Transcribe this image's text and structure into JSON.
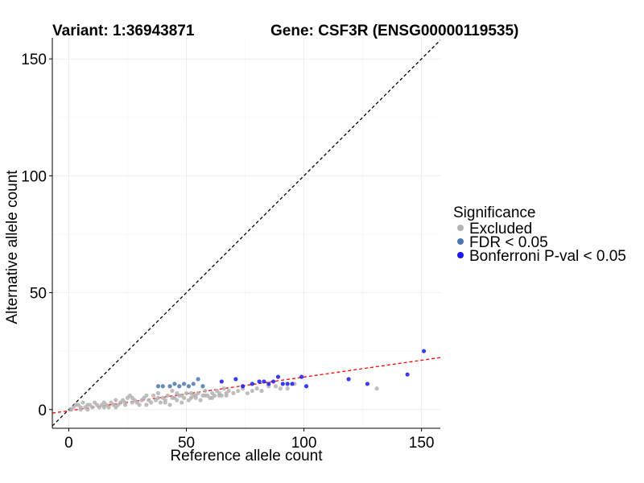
{
  "header": {
    "variant_label": "Variant: 1:36943871",
    "gene_label": "Gene: CSF3R (ENSG00000119535)"
  },
  "chart_data": {
    "type": "scatter",
    "title": "Variant: 1:36943871    Gene: CSF3R (ENSG00000119535)",
    "xlabel": "Reference allele count",
    "ylabel": "Alternative allele count",
    "xlim": [
      -7,
      158
    ],
    "ylim": [
      -8,
      159
    ],
    "x_ticks": [
      0,
      50,
      100,
      150
    ],
    "y_ticks": [
      0,
      50,
      100,
      150
    ],
    "grid": true,
    "legend": {
      "title": "Significance",
      "position": "right",
      "entries": [
        {
          "name": "Excluded",
          "color": "#b3b3b3"
        },
        {
          "name": "FDR < 0.05",
          "color": "#4a77b0"
        },
        {
          "name": "Bonferroni P-val < 0.05",
          "color": "#1a1aee"
        }
      ]
    },
    "reference_lines": [
      {
        "name": "identity",
        "color": "#000000",
        "style": "dashed",
        "intercept": 0,
        "slope": 1
      },
      {
        "name": "fit",
        "color": "#ff0000",
        "style": "dashed",
        "intercept": -0.5,
        "slope": 0.144
      }
    ],
    "series": [
      {
        "name": "Excluded",
        "color": "#b3b3b3",
        "points": [
          [
            1,
            0
          ],
          [
            2,
            1
          ],
          [
            3,
            2
          ],
          [
            4,
            2
          ],
          [
            5,
            1
          ],
          [
            6,
            3
          ],
          [
            7,
            1
          ],
          [
            8,
            2
          ],
          [
            9,
            2
          ],
          [
            10,
            1
          ],
          [
            11,
            3
          ],
          [
            12,
            2
          ],
          [
            13,
            1
          ],
          [
            14,
            2
          ],
          [
            15,
            3
          ],
          [
            16,
            2
          ],
          [
            17,
            1
          ],
          [
            18,
            3
          ],
          [
            19,
            2
          ],
          [
            20,
            1
          ],
          [
            21,
            2
          ],
          [
            22,
            3
          ],
          [
            23,
            4
          ],
          [
            24,
            2
          ],
          [
            25,
            5
          ],
          [
            26,
            6
          ],
          [
            27,
            3
          ],
          [
            28,
            4
          ],
          [
            29,
            3
          ],
          [
            30,
            2
          ],
          [
            31,
            4
          ],
          [
            32,
            5
          ],
          [
            33,
            2
          ],
          [
            34,
            4
          ],
          [
            35,
            3
          ],
          [
            36,
            6
          ],
          [
            37,
            4
          ],
          [
            38,
            7
          ],
          [
            39,
            3
          ],
          [
            40,
            5
          ],
          [
            41,
            4
          ],
          [
            42,
            6
          ],
          [
            43,
            2
          ],
          [
            44,
            8
          ],
          [
            45,
            5
          ],
          [
            46,
            4
          ],
          [
            47,
            6
          ],
          [
            48,
            3
          ],
          [
            49,
            5
          ],
          [
            50,
            7
          ],
          [
            51,
            4
          ],
          [
            52,
            5
          ],
          [
            53,
            6
          ],
          [
            54,
            5
          ],
          [
            55,
            7
          ],
          [
            56,
            4
          ],
          [
            57,
            6
          ],
          [
            58,
            8
          ],
          [
            59,
            6
          ],
          [
            60,
            5
          ],
          [
            61,
            7
          ],
          [
            62,
            6
          ],
          [
            63,
            8
          ],
          [
            64,
            7
          ],
          [
            65,
            6
          ],
          [
            66,
            9
          ],
          [
            67,
            7
          ],
          [
            68,
            8
          ],
          [
            70,
            7
          ],
          [
            72,
            8
          ],
          [
            74,
            9
          ],
          [
            76,
            7
          ],
          [
            78,
            8
          ],
          [
            80,
            9
          ],
          [
            82,
            8
          ],
          [
            85,
            10
          ],
          [
            88,
            10
          ],
          [
            90,
            9
          ],
          [
            93,
            9
          ],
          [
            96,
            11
          ],
          [
            131,
            9
          ],
          [
            24,
            3
          ],
          [
            27,
            5
          ],
          [
            33,
            6
          ],
          [
            38,
            5
          ],
          [
            44,
            5
          ],
          [
            46,
            7
          ],
          [
            52,
            7
          ],
          [
            58,
            6
          ],
          [
            64,
            6
          ],
          [
            20,
            4
          ],
          [
            15,
            1
          ],
          [
            8,
            0
          ],
          [
            5,
            0
          ],
          [
            41,
            3
          ],
          [
            48,
            6
          ],
          [
            54,
            6
          ],
          [
            61,
            5
          ],
          [
            67,
            6
          ]
        ]
      },
      {
        "name": "FDR < 0.05",
        "color": "#4a77b0",
        "points": [
          [
            38,
            10
          ],
          [
            40,
            10
          ],
          [
            43,
            10
          ],
          [
            45,
            11
          ],
          [
            47,
            10
          ],
          [
            49,
            11
          ],
          [
            51,
            10
          ],
          [
            53,
            11
          ],
          [
            55,
            13
          ],
          [
            57,
            10
          ]
        ]
      },
      {
        "name": "Bonferroni P-val < 0.05",
        "color": "#1a1aee",
        "points": [
          [
            65,
            12
          ],
          [
            71,
            13
          ],
          [
            74,
            10
          ],
          [
            78,
            11
          ],
          [
            81,
            12
          ],
          [
            83,
            12
          ],
          [
            85,
            11
          ],
          [
            87,
            12
          ],
          [
            89,
            14
          ],
          [
            91,
            11
          ],
          [
            93,
            11
          ],
          [
            95,
            11
          ],
          [
            99,
            14
          ],
          [
            101,
            10
          ],
          [
            119,
            13
          ],
          [
            127,
            11
          ],
          [
            144,
            15
          ],
          [
            151,
            25
          ]
        ]
      }
    ]
  }
}
